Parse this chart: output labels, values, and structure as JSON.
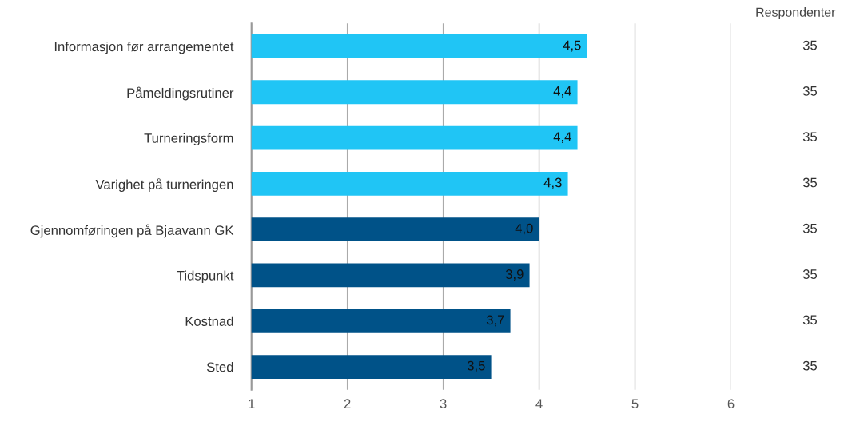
{
  "chart_data": {
    "type": "bar",
    "orientation": "horizontal",
    "categories": [
      "Informasjon før arrangementet",
      "Påmeldingsrutiner",
      "Turneringsform",
      "Varighet på turneringen",
      "Gjennomføringen på Bjaavann GK",
      "Tidspunkt",
      "Kostnad",
      "Sted"
    ],
    "values": [
      4.5,
      4.4,
      4.4,
      4.3,
      4.0,
      3.9,
      3.7,
      3.5
    ],
    "value_labels": [
      "4,5",
      "4,4",
      "4,4",
      "4,3",
      "4,0",
      "3,9",
      "3,7",
      "3,5"
    ],
    "colors": [
      "#20c5f5",
      "#20c5f5",
      "#20c5f5",
      "#20c5f5",
      "#005288",
      "#005288",
      "#005288",
      "#005288"
    ],
    "xlim": [
      1,
      6
    ],
    "xticks": [
      1,
      2,
      3,
      4,
      5,
      6
    ],
    "grid": "x",
    "annotations": [
      "Respondenter",
      "35",
      "35",
      "35",
      "35",
      "35",
      "35",
      "35",
      "35"
    ]
  }
}
